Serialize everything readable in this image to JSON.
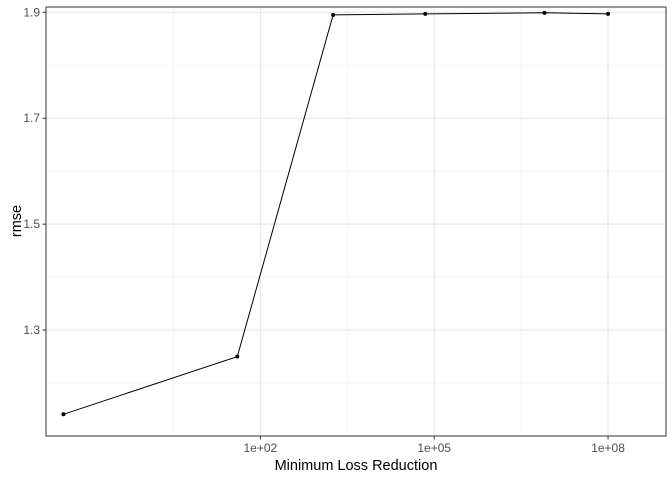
{
  "chart_data": {
    "type": "line",
    "title": "",
    "xlabel": "Minimum Loss Reduction",
    "ylabel": "rmse",
    "x_scale": "log10",
    "xlim": [
      0.02,
      1000000000
    ],
    "ylim": [
      1.1,
      1.91
    ],
    "x_ticks": [
      {
        "value": 100,
        "label": "1e+02"
      },
      {
        "value": 100000,
        "label": "1e+05"
      },
      {
        "value": 100000000,
        "label": "1e+08"
      }
    ],
    "y_ticks": [
      {
        "value": 1.3,
        "label": "1.3"
      },
      {
        "value": 1.5,
        "label": "1.5"
      },
      {
        "value": 1.7,
        "label": "1.7"
      },
      {
        "value": 1.9,
        "label": "1.9"
      }
    ],
    "grid": true,
    "legend": "none",
    "series": [
      {
        "color": "#000000",
        "points": [
          {
            "x": 0.04,
            "y": 1.141
          },
          {
            "x": 40,
            "y": 1.25
          },
          {
            "x": 1800,
            "y": 1.895
          },
          {
            "x": 70000,
            "y": 1.897
          },
          {
            "x": 8000000,
            "y": 1.899
          },
          {
            "x": 100000000,
            "y": 1.897
          }
        ]
      }
    ]
  }
}
